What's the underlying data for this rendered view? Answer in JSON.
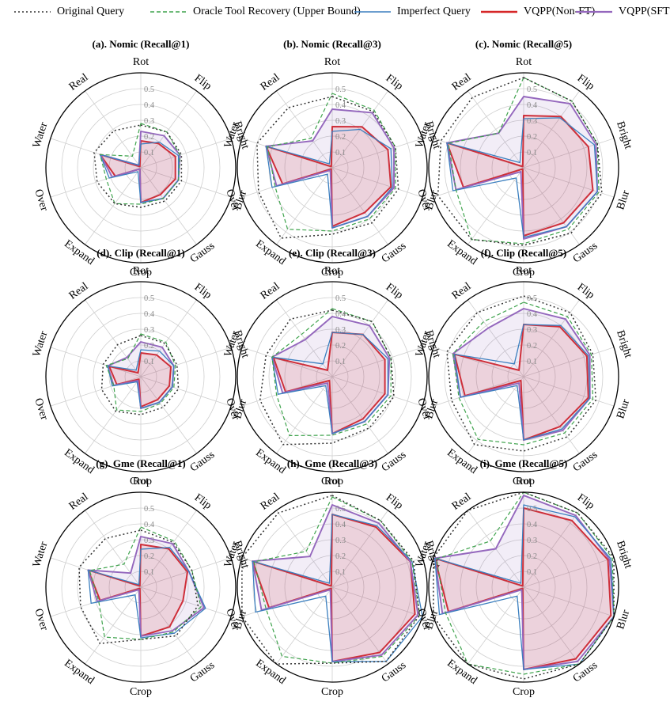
{
  "legend": [
    {
      "key": "original",
      "label": "Original Query",
      "color": "#333333",
      "dash": "2,3"
    },
    {
      "key": "oracle",
      "label": "Oracle Tool Recovery (Upper Bound)",
      "color": "#3fa34d",
      "dash": "5,3"
    },
    {
      "key": "imperfect",
      "label": "Imperfect Query",
      "color": "#3b7fbf",
      "dash": ""
    },
    {
      "key": "nonft",
      "label": "VQPP(Non-FT)",
      "color": "#d62728",
      "dash": ""
    },
    {
      "key": "sft",
      "label": "VQPP(SFT)",
      "color": "#9467bd",
      "dash": ""
    }
  ],
  "chart_data": [
    {
      "type": "radar",
      "title": "(a). Nomic (Recall@1)",
      "rmax": 0.6,
      "rings": [
        "0.1",
        "0.2",
        "0.3",
        "0.4",
        "0.5"
      ],
      "categories": [
        "Rot",
        "Flip",
        "Bright",
        "Blur",
        "Gauss",
        "Crop",
        "Expand",
        "Over",
        "Water",
        "Real"
      ],
      "series": {
        "original": [
          0.27,
          0.28,
          0.27,
          0.27,
          0.26,
          0.25,
          0.28,
          0.29,
          0.31,
          0.29
        ],
        "oracle": [
          0.28,
          0.28,
          0.26,
          0.25,
          0.24,
          0.23,
          0.28,
          0.23,
          0.27,
          0.09
        ],
        "imperfect": [
          0.15,
          0.2,
          0.25,
          0.25,
          0.24,
          0.22,
          0.03,
          0.21,
          0.27,
          0.02
        ],
        "nonft": [
          0.17,
          0.19,
          0.23,
          0.23,
          0.21,
          0.22,
          0.01,
          0.17,
          0.27,
          0.01
        ],
        "sft": [
          0.23,
          0.25,
          0.26,
          0.25,
          0.24,
          0.22,
          0.01,
          0.19,
          0.27,
          0.02
        ]
      }
    },
    {
      "type": "radar",
      "title": "(b). Nomic (Recall@3)",
      "rmax": 0.6,
      "rings": [
        "0.1",
        "0.2",
        "0.3",
        "0.4",
        "0.5"
      ],
      "categories": [
        "Rot",
        "Flip",
        "Bright",
        "Blur",
        "Gauss",
        "Crop",
        "Expand",
        "Over",
        "Water",
        "Real"
      ],
      "series": {
        "original": [
          0.45,
          0.44,
          0.42,
          0.44,
          0.43,
          0.42,
          0.55,
          0.49,
          0.5,
          0.47
        ],
        "oracle": [
          0.47,
          0.45,
          0.42,
          0.42,
          0.4,
          0.4,
          0.48,
          0.38,
          0.43,
          0.23
        ],
        "imperfect": [
          0.23,
          0.3,
          0.39,
          0.4,
          0.38,
          0.38,
          0.05,
          0.4,
          0.44,
          0.03
        ],
        "nonft": [
          0.26,
          0.32,
          0.37,
          0.39,
          0.35,
          0.37,
          0.01,
          0.33,
          0.44,
          0.01
        ],
        "sft": [
          0.37,
          0.43,
          0.41,
          0.41,
          0.38,
          0.38,
          0.02,
          0.37,
          0.44,
          0.21
        ]
      }
    },
    {
      "type": "radar",
      "title": "(c). Nomic (Recall@5)",
      "rmax": 0.6,
      "rings": [
        "0.1",
        "0.2",
        "0.3",
        "0.4",
        "0.5"
      ],
      "categories": [
        "Rot",
        "Flip",
        "Bright",
        "Blur",
        "Gauss",
        "Crop",
        "Expand",
        "Over",
        "Water",
        "Real"
      ],
      "series": {
        "original": [
          0.57,
          0.52,
          0.49,
          0.52,
          0.51,
          0.49,
          0.56,
          0.57,
          0.55,
          0.55
        ],
        "oracle": [
          0.57,
          0.52,
          0.49,
          0.5,
          0.48,
          0.48,
          0.56,
          0.45,
          0.5,
          0.27
        ],
        "imperfect": [
          0.31,
          0.39,
          0.47,
          0.49,
          0.46,
          0.44,
          0.08,
          0.47,
          0.51,
          0.04
        ],
        "nonft": [
          0.33,
          0.4,
          0.43,
          0.46,
          0.43,
          0.43,
          0.01,
          0.4,
          0.51,
          0.01
        ],
        "sft": [
          0.45,
          0.5,
          0.48,
          0.49,
          0.46,
          0.45,
          0.03,
          0.45,
          0.51,
          0.27
        ]
      }
    },
    {
      "type": "radar",
      "title": "(d). Clip (Recall@1)",
      "rmax": 0.6,
      "rings": [
        "0.1",
        "0.2",
        "0.3",
        "0.4",
        "0.5"
      ],
      "categories": [
        "Rot",
        "Flip",
        "Bright",
        "Blur",
        "Gauss",
        "Crop",
        "Expand",
        "Over",
        "Water",
        "Real"
      ],
      "series": {
        "original": [
          0.26,
          0.26,
          0.24,
          0.25,
          0.24,
          0.24,
          0.27,
          0.26,
          0.25,
          0.25
        ],
        "oracle": [
          0.27,
          0.27,
          0.23,
          0.22,
          0.21,
          0.22,
          0.26,
          0.18,
          0.23,
          0.14
        ],
        "imperfect": [
          0.17,
          0.2,
          0.22,
          0.21,
          0.2,
          0.2,
          0.04,
          0.19,
          0.22,
          0.05
        ],
        "nonft": [
          0.15,
          0.17,
          0.2,
          0.19,
          0.18,
          0.19,
          0.02,
          0.16,
          0.21,
          0.03
        ],
        "sft": [
          0.22,
          0.23,
          0.22,
          0.21,
          0.2,
          0.2,
          0.03,
          0.18,
          0.22,
          0.15
        ]
      }
    },
    {
      "type": "radar",
      "title": "(e). Clip (Recall@3)",
      "rmax": 0.6,
      "rings": [
        "0.1",
        "0.2",
        "0.3",
        "0.4",
        "0.5"
      ],
      "categories": [
        "Rot",
        "Flip",
        "Bright",
        "Blur",
        "Gauss",
        "Crop",
        "Expand",
        "Over",
        "Water",
        "Real"
      ],
      "series": {
        "original": [
          0.42,
          0.43,
          0.39,
          0.41,
          0.4,
          0.42,
          0.53,
          0.48,
          0.44,
          0.45
        ],
        "oracle": [
          0.43,
          0.43,
          0.39,
          0.39,
          0.37,
          0.37,
          0.46,
          0.37,
          0.4,
          0.33
        ],
        "imperfect": [
          0.28,
          0.33,
          0.37,
          0.37,
          0.35,
          0.36,
          0.07,
          0.36,
          0.4,
          0.1
        ],
        "nonft": [
          0.28,
          0.33,
          0.35,
          0.35,
          0.33,
          0.36,
          0.03,
          0.31,
          0.39,
          0.05
        ],
        "sft": [
          0.38,
          0.4,
          0.38,
          0.37,
          0.35,
          0.36,
          0.05,
          0.33,
          0.4,
          0.29
        ]
      }
    },
    {
      "type": "radar",
      "title": "(f). Clip (Recall@5)",
      "rmax": 0.6,
      "rings": [
        "0.1",
        "0.2",
        "0.3",
        "0.4",
        "0.5"
      ],
      "categories": [
        "Rot",
        "Flip",
        "Bright",
        "Blur",
        "Gauss",
        "Crop",
        "Expand",
        "Over",
        "Water",
        "Real"
      ],
      "series": {
        "original": [
          0.51,
          0.5,
          0.46,
          0.48,
          0.47,
          0.47,
          0.53,
          0.48,
          0.51,
          0.5
        ],
        "oracle": [
          0.47,
          0.47,
          0.45,
          0.46,
          0.44,
          0.43,
          0.49,
          0.43,
          0.47,
          0.43
        ],
        "imperfect": [
          0.33,
          0.4,
          0.43,
          0.44,
          0.41,
          0.4,
          0.07,
          0.42,
          0.46,
          0.1
        ],
        "nonft": [
          0.33,
          0.39,
          0.42,
          0.43,
          0.39,
          0.4,
          0.03,
          0.39,
          0.46,
          0.05
        ],
        "sft": [
          0.43,
          0.45,
          0.44,
          0.44,
          0.42,
          0.4,
          0.05,
          0.42,
          0.47,
          0.38
        ]
      }
    },
    {
      "type": "radar",
      "title": "(g). Gme (Recall@1)",
      "rmax": 0.6,
      "rings": [
        "0.1",
        "0.2",
        "0.3",
        "0.4",
        "0.5"
      ],
      "categories": [
        "Rot",
        "Flip",
        "Bright",
        "Blur",
        "Gauss",
        "Crop",
        "Expand",
        "Over",
        "Water",
        "Real"
      ],
      "series": {
        "original": [
          0.36,
          0.35,
          0.34,
          0.38,
          0.38,
          0.33,
          0.44,
          0.4,
          0.41,
          0.38
        ],
        "oracle": [
          0.38,
          0.36,
          0.34,
          0.4,
          0.35,
          0.33,
          0.39,
          0.28,
          0.34,
          0.18
        ],
        "imperfect": [
          0.24,
          0.31,
          0.32,
          0.43,
          0.36,
          0.32,
          0.06,
          0.33,
          0.35,
          0.02
        ],
        "nonft": [
          0.27,
          0.3,
          0.31,
          0.28,
          0.31,
          0.31,
          0.01,
          0.27,
          0.35,
          0.01
        ],
        "sft": [
          0.32,
          0.34,
          0.32,
          0.42,
          0.34,
          0.31,
          0.02,
          0.29,
          0.35,
          0.11
        ]
      }
    },
    {
      "type": "radar",
      "title": "(h). Gme (Recall@3)",
      "rmax": 0.6,
      "rings": [
        "0.1",
        "0.2",
        "0.3",
        "0.4",
        "0.5"
      ],
      "categories": [
        "Rot",
        "Flip",
        "Bright",
        "Blur",
        "Gauss",
        "Crop",
        "Expand",
        "Over",
        "Water",
        "Real"
      ],
      "series": {
        "original": [
          0.58,
          0.52,
          0.54,
          0.58,
          0.58,
          0.48,
          0.62,
          0.6,
          0.61,
          0.58
        ],
        "oracle": [
          0.57,
          0.52,
          0.53,
          0.58,
          0.54,
          0.48,
          0.54,
          0.44,
          0.52,
          0.28
        ],
        "imperfect": [
          0.46,
          0.48,
          0.53,
          0.62,
          0.58,
          0.47,
          0.07,
          0.51,
          0.53,
          0.03
        ],
        "nonft": [
          0.46,
          0.47,
          0.52,
          0.55,
          0.51,
          0.47,
          0.01,
          0.42,
          0.53,
          0.01
        ],
        "sft": [
          0.52,
          0.5,
          0.52,
          0.57,
          0.53,
          0.47,
          0.02,
          0.47,
          0.53,
          0.24
        ]
      }
    },
    {
      "type": "radar",
      "title": "(i). Gme (Recall@5)",
      "rmax": 0.6,
      "rings": [
        "0.1",
        "0.2",
        "0.3",
        "0.4",
        "0.5"
      ],
      "categories": [
        "Rot",
        "Flip",
        "Bright",
        "Blur",
        "Gauss",
        "Crop",
        "Expand",
        "Over",
        "Water",
        "Real"
      ],
      "series": {
        "original": [
          0.62,
          0.58,
          0.6,
          0.63,
          0.62,
          0.58,
          0.66,
          0.65,
          0.65,
          0.62
        ],
        "oracle": [
          0.62,
          0.58,
          0.59,
          0.63,
          0.6,
          0.55,
          0.6,
          0.52,
          0.58,
          0.36
        ],
        "imperfect": [
          0.52,
          0.55,
          0.58,
          0.66,
          0.63,
          0.52,
          0.07,
          0.56,
          0.59,
          0.03
        ],
        "nonft": [
          0.5,
          0.52,
          0.56,
          0.58,
          0.56,
          0.52,
          0.01,
          0.5,
          0.59,
          0.01
        ],
        "sft": [
          0.58,
          0.56,
          0.57,
          0.62,
          0.58,
          0.52,
          0.02,
          0.54,
          0.59,
          0.3
        ]
      }
    }
  ]
}
